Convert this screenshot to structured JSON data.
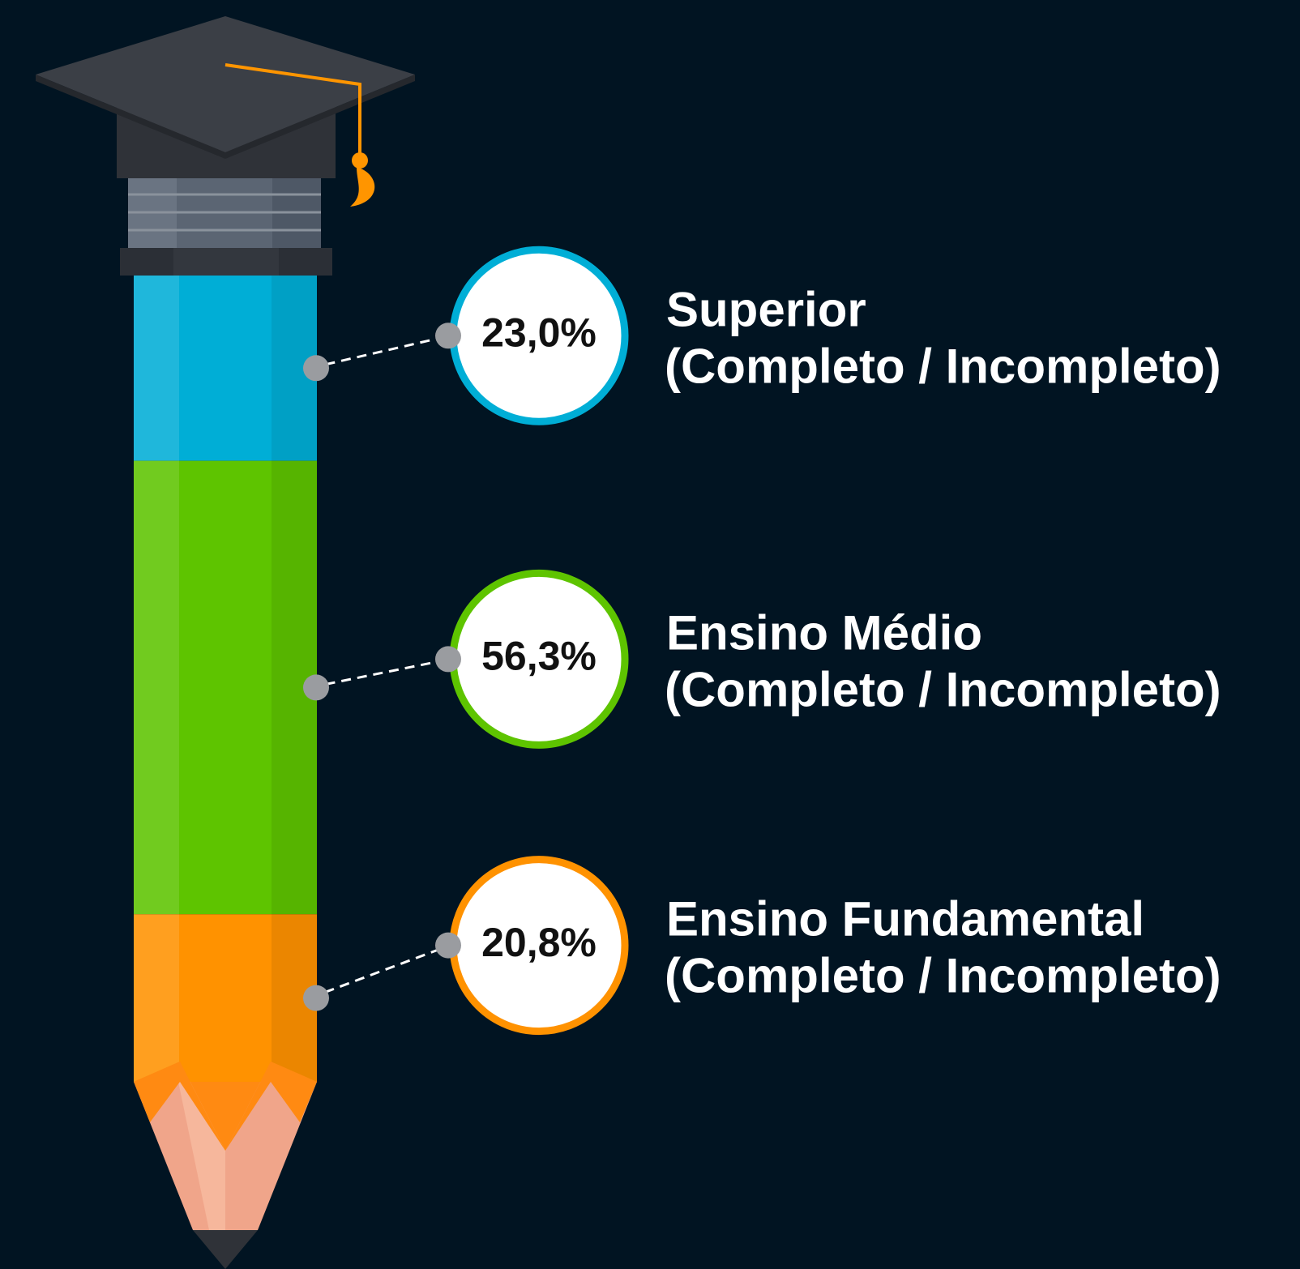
{
  "chart_data": {
    "type": "pencil-stacked-bar",
    "categories": [
      "Superior",
      "Ensino Médio",
      "Ensino Fundamental"
    ],
    "category_notes": [
      "(Completo / Incompleto)",
      "(Completo / Incompleto)",
      "(Completo / Incompleto)"
    ],
    "values": [
      23.0,
      56.3,
      20.8
    ],
    "value_labels": [
      "23,0%",
      "56,3%",
      "20,8%"
    ],
    "colors": [
      "#00aed6",
      "#5ec400",
      "#ff9200"
    ]
  }
}
